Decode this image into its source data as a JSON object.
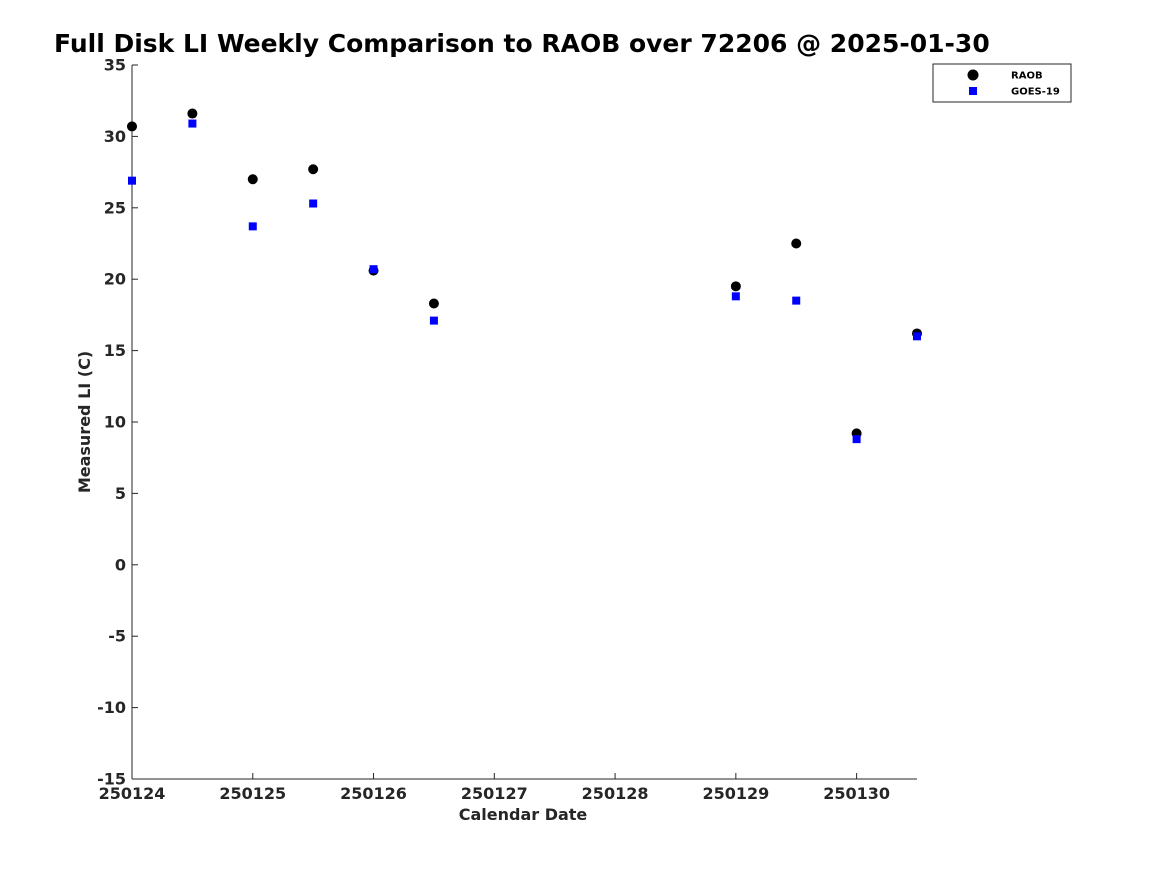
{
  "chart_data": {
    "type": "scatter",
    "title": "Full Disk LI Weekly Comparison to RAOB over 72206 @ 2025-01-30",
    "xlabel": "Calendar Date",
    "ylabel": "Measured LI (C)",
    "xlim": [
      0,
      6.5
    ],
    "ylim": [
      -15,
      35
    ],
    "x_ticks": [
      0,
      1,
      2,
      3,
      4,
      5,
      6
    ],
    "x_tick_labels": [
      "250124",
      "250125",
      "250126",
      "250127",
      "250128",
      "250129",
      "250130"
    ],
    "y_ticks": [
      -15,
      -10,
      -5,
      0,
      5,
      10,
      15,
      20,
      25,
      30,
      35
    ],
    "y_tick_labels": [
      "-15",
      "-10",
      "-5",
      "0",
      "5",
      "10",
      "15",
      "20",
      "25",
      "30",
      "35"
    ],
    "grid": false,
    "legend_position": "top-right",
    "series": [
      {
        "name": "RAOB",
        "marker": "circle",
        "color": "#000000",
        "x": [
          0,
          0.5,
          1,
          1.5,
          2,
          2.5,
          5,
          5.5,
          6,
          6.5
        ],
        "values": [
          30.7,
          31.6,
          27.0,
          27.7,
          20.6,
          18.3,
          19.5,
          22.5,
          9.2,
          16.2
        ]
      },
      {
        "name": "GOES-19",
        "marker": "square",
        "color": "#0000ff",
        "x": [
          0,
          0.5,
          1,
          1.5,
          2,
          2.5,
          5,
          5.5,
          6,
          6.5
        ],
        "values": [
          26.9,
          30.9,
          23.7,
          25.3,
          20.7,
          17.1,
          18.8,
          18.5,
          8.8,
          16.0
        ]
      }
    ]
  }
}
